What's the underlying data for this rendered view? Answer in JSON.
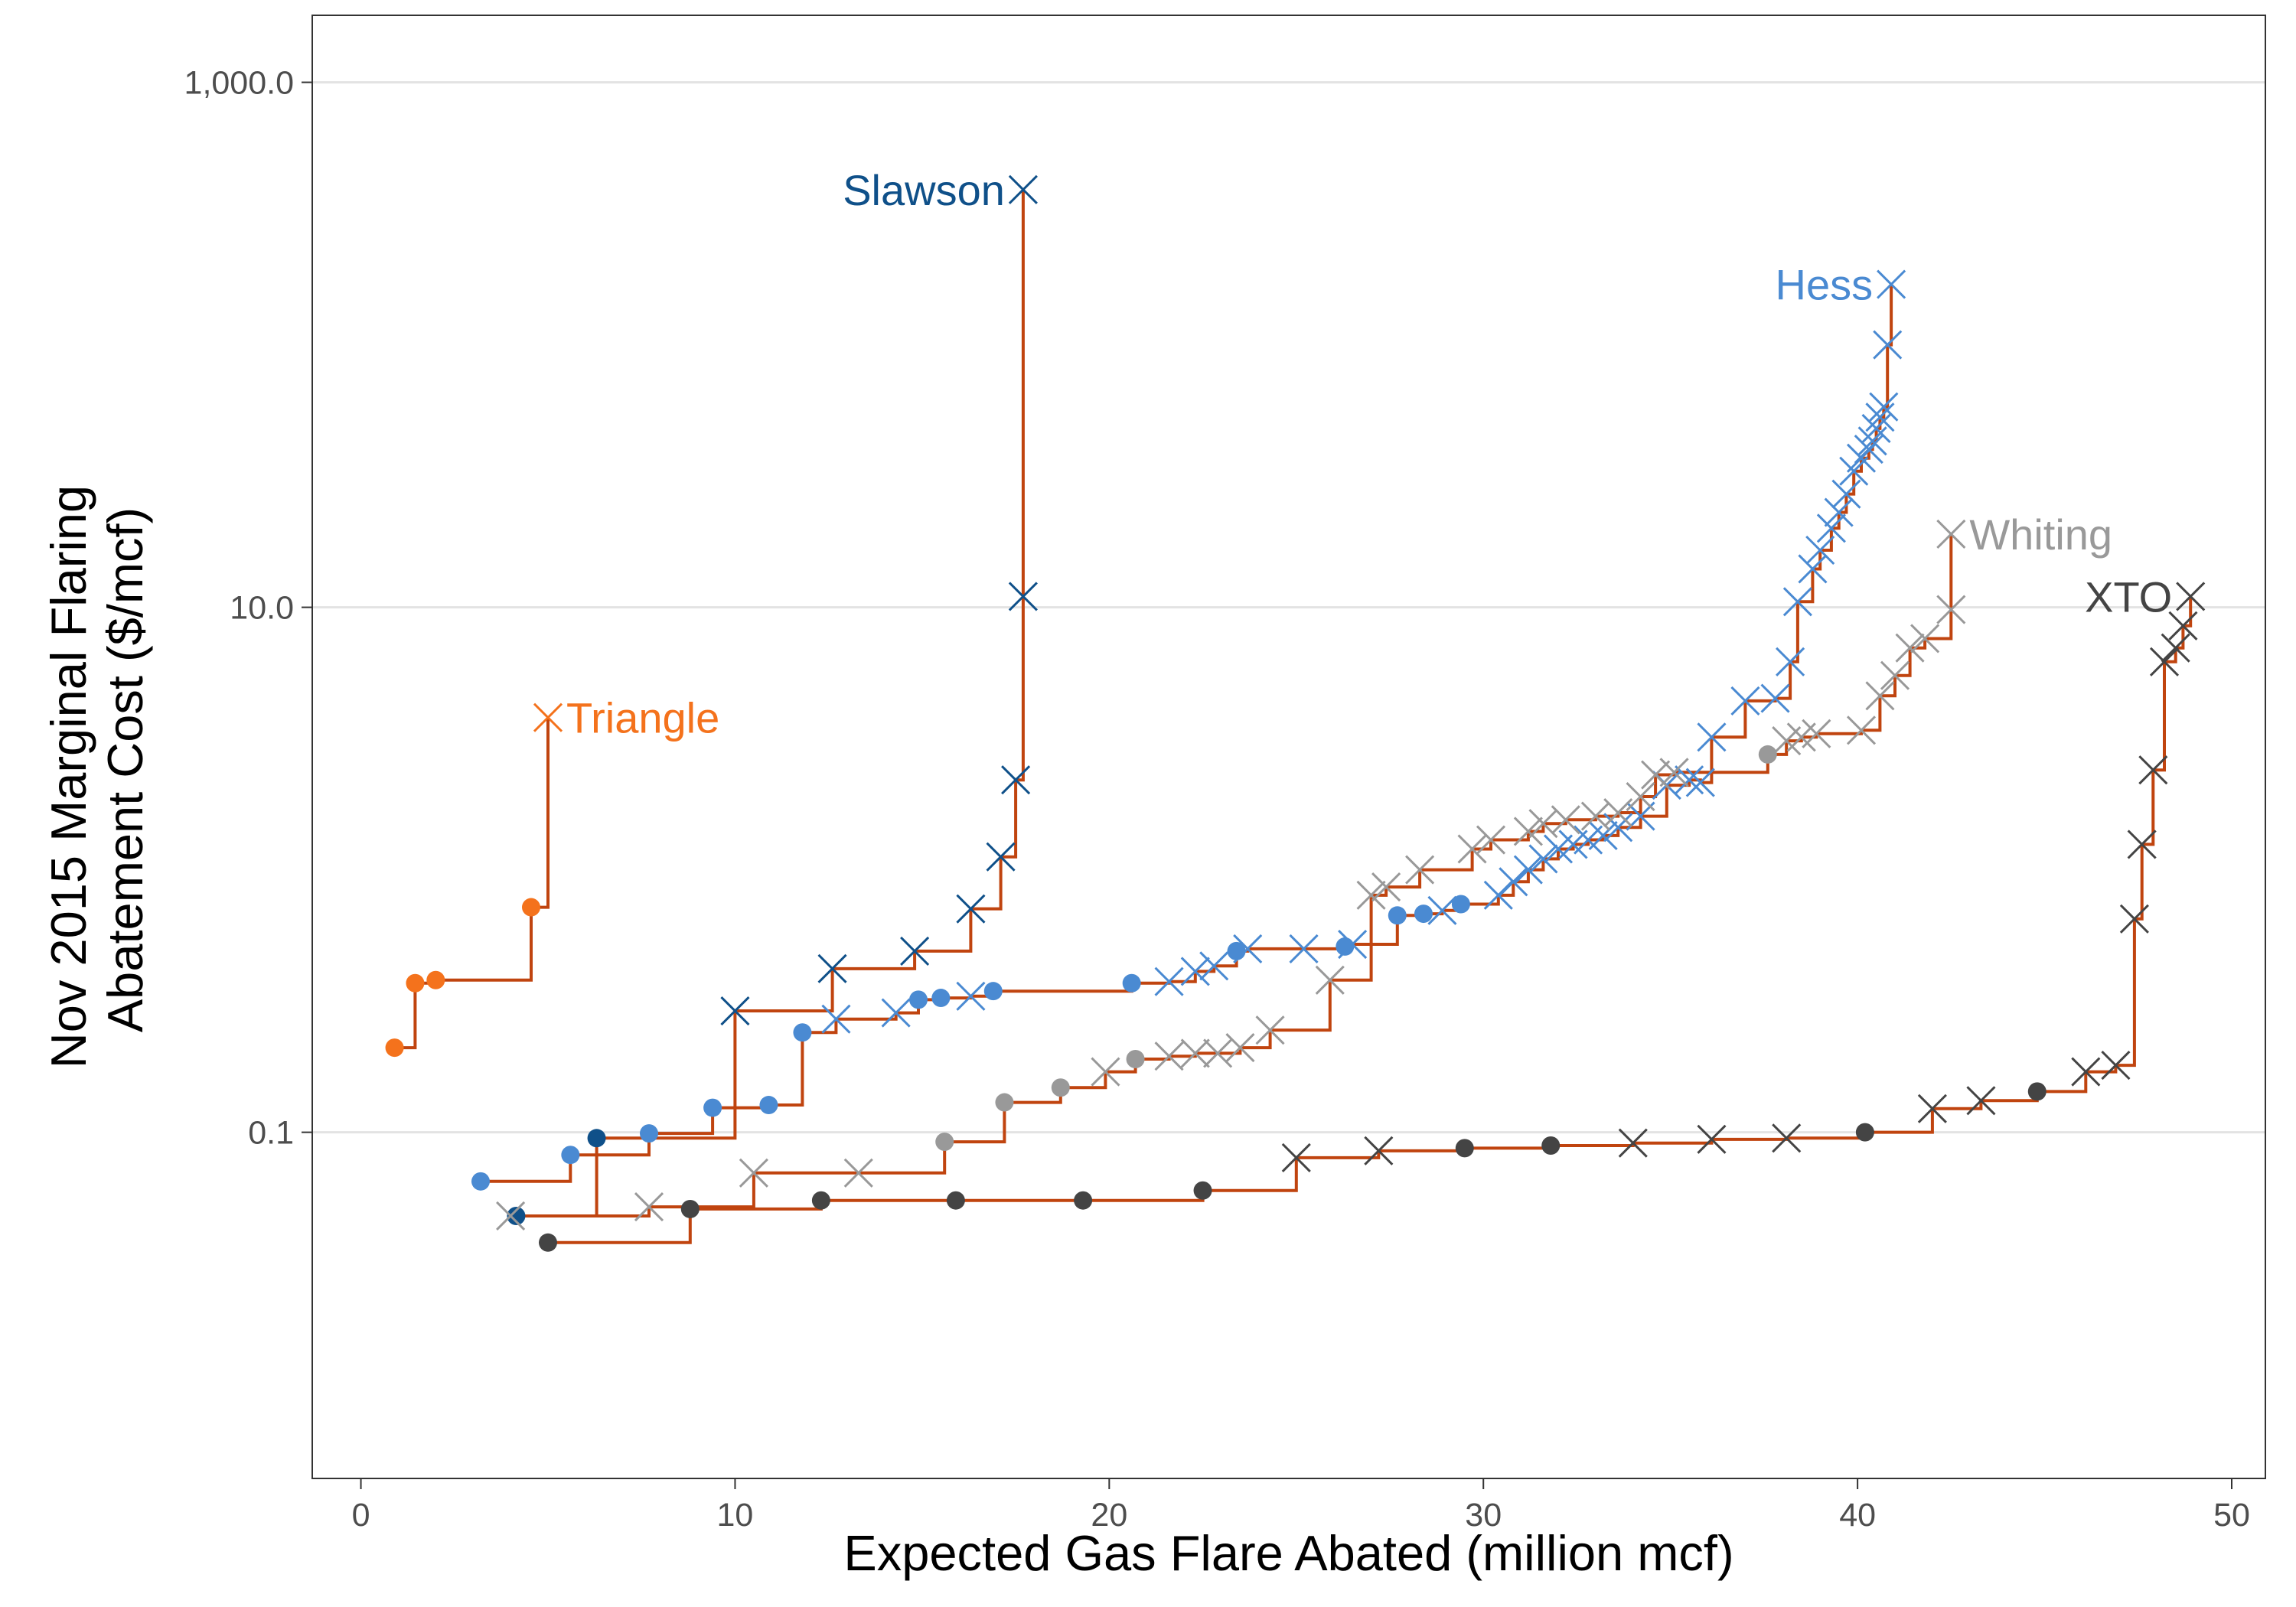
{
  "chart_data": {
    "type": "line",
    "title": "",
    "xlabel": "Expected Gas Flare Abated (million mcf)",
    "ylabel_lines": [
      "Nov 2015 Marginal Flaring",
      "Abatement Cost ($/mcf)"
    ],
    "x_range": [
      -1.3,
      50.9
    ],
    "y_range": [
      0.0048,
      1800
    ],
    "y_scale": "log",
    "x_ticks": [
      {
        "value": 0,
        "label": "0"
      },
      {
        "value": 10,
        "label": "10"
      },
      {
        "value": 20,
        "label": "20"
      },
      {
        "value": 30,
        "label": "30"
      },
      {
        "value": 40,
        "label": "40"
      },
      {
        "value": 50,
        "label": "50"
      }
    ],
    "y_ticks": [
      {
        "value": 0.1,
        "label": "0.1"
      },
      {
        "value": 10,
        "label": "10.0"
      },
      {
        "value": 1000,
        "label": "1,000.0"
      }
    ],
    "grid": {
      "horizontal": true,
      "vertical": false
    },
    "step_line_color": "#c0440f",
    "series": [
      {
        "name": "Triangle",
        "color": "#f4721c",
        "label_side": "right",
        "points": [
          {
            "x": 0.9,
            "y": 0.21,
            "m": "o"
          },
          {
            "x": 1.45,
            "y": 0.37,
            "m": "o"
          },
          {
            "x": 2.0,
            "y": 0.38,
            "m": "o"
          },
          {
            "x": 4.55,
            "y": 0.72,
            "m": "o"
          },
          {
            "x": 5.0,
            "y": 3.8,
            "m": "x"
          }
        ]
      },
      {
        "name": "Slawson",
        "color": "#0f5089",
        "label_side": "left",
        "points": [
          {
            "x": 4.15,
            "y": 0.048,
            "m": "o"
          },
          {
            "x": 6.3,
            "y": 0.095,
            "m": "o"
          },
          {
            "x": 10.0,
            "y": 0.29,
            "m": "x"
          },
          {
            "x": 12.6,
            "y": 0.42,
            "m": "x"
          },
          {
            "x": 14.8,
            "y": 0.49,
            "m": "x"
          },
          {
            "x": 16.3,
            "y": 0.71,
            "m": "x"
          },
          {
            "x": 17.1,
            "y": 1.12,
            "m": "x"
          },
          {
            "x": 17.5,
            "y": 2.2,
            "m": "x"
          },
          {
            "x": 17.7,
            "y": 11.0,
            "m": "x"
          },
          {
            "x": 17.7,
            "y": 390,
            "m": "x"
          }
        ]
      },
      {
        "name": "Hess",
        "color": "#4a8ad2",
        "label_side": "left",
        "points": [
          {
            "x": 3.2,
            "y": 0.065,
            "m": "o"
          },
          {
            "x": 5.6,
            "y": 0.082,
            "m": "o"
          },
          {
            "x": 7.7,
            "y": 0.099,
            "m": "o"
          },
          {
            "x": 9.4,
            "y": 0.124,
            "m": "o"
          },
          {
            "x": 10.9,
            "y": 0.127,
            "m": "o"
          },
          {
            "x": 11.8,
            "y": 0.24,
            "m": "o"
          },
          {
            "x": 12.7,
            "y": 0.27,
            "m": "x"
          },
          {
            "x": 14.3,
            "y": 0.285,
            "m": "x"
          },
          {
            "x": 14.9,
            "y": 0.32,
            "m": "o"
          },
          {
            "x": 15.5,
            "y": 0.325,
            "m": "o"
          },
          {
            "x": 16.3,
            "y": 0.33,
            "m": "x"
          },
          {
            "x": 16.9,
            "y": 0.345,
            "m": "o"
          },
          {
            "x": 20.6,
            "y": 0.37,
            "m": "o"
          },
          {
            "x": 21.6,
            "y": 0.375,
            "m": "x"
          },
          {
            "x": 22.3,
            "y": 0.41,
            "m": "x"
          },
          {
            "x": 22.8,
            "y": 0.43,
            "m": "x"
          },
          {
            "x": 23.4,
            "y": 0.49,
            "m": "o"
          },
          {
            "x": 23.7,
            "y": 0.5,
            "m": "x"
          },
          {
            "x": 25.2,
            "y": 0.5,
            "m": "x"
          },
          {
            "x": 26.3,
            "y": 0.51,
            "m": "o"
          },
          {
            "x": 26.5,
            "y": 0.52,
            "m": "x"
          },
          {
            "x": 27.7,
            "y": 0.67,
            "m": "o"
          },
          {
            "x": 28.4,
            "y": 0.68,
            "m": "o"
          },
          {
            "x": 28.9,
            "y": 0.7,
            "m": "x"
          },
          {
            "x": 29.4,
            "y": 0.74,
            "m": "o"
          },
          {
            "x": 30.4,
            "y": 0.8,
            "m": "x"
          },
          {
            "x": 30.8,
            "y": 0.9,
            "m": "x"
          },
          {
            "x": 31.2,
            "y": 1.0,
            "m": "x"
          },
          {
            "x": 31.6,
            "y": 1.1,
            "m": "x"
          },
          {
            "x": 32.0,
            "y": 1.2,
            "m": "x"
          },
          {
            "x": 32.4,
            "y": 1.25,
            "m": "x"
          },
          {
            "x": 32.8,
            "y": 1.3,
            "m": "x"
          },
          {
            "x": 33.2,
            "y": 1.35,
            "m": "x"
          },
          {
            "x": 33.6,
            "y": 1.45,
            "m": "x"
          },
          {
            "x": 34.2,
            "y": 1.6,
            "m": "x"
          },
          {
            "x": 34.9,
            "y": 2.1,
            "m": "x"
          },
          {
            "x": 35.5,
            "y": 2.2,
            "m": "x"
          },
          {
            "x": 35.8,
            "y": 2.15,
            "m": "x"
          },
          {
            "x": 36.1,
            "y": 3.2,
            "m": "x"
          },
          {
            "x": 37.0,
            "y": 4.4,
            "m": "x"
          },
          {
            "x": 37.8,
            "y": 4.5,
            "m": "x"
          },
          {
            "x": 38.2,
            "y": 6.2,
            "m": "x"
          },
          {
            "x": 38.4,
            "y": 10.5,
            "m": "x"
          },
          {
            "x": 38.8,
            "y": 14.0,
            "m": "x"
          },
          {
            "x": 39.0,
            "y": 16.5,
            "m": "x"
          },
          {
            "x": 39.3,
            "y": 20.0,
            "m": "x"
          },
          {
            "x": 39.5,
            "y": 23.0,
            "m": "x"
          },
          {
            "x": 39.7,
            "y": 27.0,
            "m": "x"
          },
          {
            "x": 39.9,
            "y": 33.0,
            "m": "x"
          },
          {
            "x": 40.1,
            "y": 37.0,
            "m": "x"
          },
          {
            "x": 40.3,
            "y": 40.0,
            "m": "x"
          },
          {
            "x": 40.4,
            "y": 43.0,
            "m": "x"
          },
          {
            "x": 40.5,
            "y": 48.0,
            "m": "x"
          },
          {
            "x": 40.6,
            "y": 53.0,
            "m": "x"
          },
          {
            "x": 40.7,
            "y": 58.0,
            "m": "x"
          },
          {
            "x": 40.8,
            "y": 100,
            "m": "x"
          },
          {
            "x": 40.9,
            "y": 170,
            "m": "x"
          }
        ]
      },
      {
        "name": "Whiting",
        "color": "#999999",
        "label_side": "right",
        "points": [
          {
            "x": 4.0,
            "y": 0.048,
            "m": "x"
          },
          {
            "x": 7.7,
            "y": 0.052,
            "m": "x"
          },
          {
            "x": 10.5,
            "y": 0.07,
            "m": "x"
          },
          {
            "x": 13.3,
            "y": 0.07,
            "m": "x"
          },
          {
            "x": 15.6,
            "y": 0.092,
            "m": "o"
          },
          {
            "x": 17.2,
            "y": 0.13,
            "m": "o"
          },
          {
            "x": 18.7,
            "y": 0.148,
            "m": "o"
          },
          {
            "x": 19.9,
            "y": 0.17,
            "m": "x"
          },
          {
            "x": 20.7,
            "y": 0.19,
            "m": "o"
          },
          {
            "x": 21.6,
            "y": 0.195,
            "m": "x"
          },
          {
            "x": 22.3,
            "y": 0.2,
            "m": "x"
          },
          {
            "x": 22.9,
            "y": 0.2,
            "m": "x"
          },
          {
            "x": 23.5,
            "y": 0.21,
            "m": "x"
          },
          {
            "x": 24.3,
            "y": 0.245,
            "m": "x"
          },
          {
            "x": 25.9,
            "y": 0.38,
            "m": "x"
          },
          {
            "x": 27.0,
            "y": 0.8,
            "m": "x"
          },
          {
            "x": 27.4,
            "y": 0.86,
            "m": "x"
          },
          {
            "x": 28.3,
            "y": 1.0,
            "m": "x"
          },
          {
            "x": 29.7,
            "y": 1.2,
            "m": "x"
          },
          {
            "x": 30.2,
            "y": 1.3,
            "m": "x"
          },
          {
            "x": 31.2,
            "y": 1.4,
            "m": "x"
          },
          {
            "x": 31.6,
            "y": 1.5,
            "m": "x"
          },
          {
            "x": 32.2,
            "y": 1.55,
            "m": "x"
          },
          {
            "x": 33.0,
            "y": 1.6,
            "m": "x"
          },
          {
            "x": 33.6,
            "y": 1.65,
            "m": "x"
          },
          {
            "x": 34.2,
            "y": 1.9,
            "m": "x"
          },
          {
            "x": 34.6,
            "y": 2.3,
            "m": "x"
          },
          {
            "x": 35.1,
            "y": 2.35,
            "m": "x"
          },
          {
            "x": 37.6,
            "y": 2.75,
            "m": "o"
          },
          {
            "x": 38.1,
            "y": 3.1,
            "m": "x"
          },
          {
            "x": 38.5,
            "y": 3.2,
            "m": "x"
          },
          {
            "x": 38.9,
            "y": 3.3,
            "m": "x"
          },
          {
            "x": 40.1,
            "y": 3.4,
            "m": "x"
          },
          {
            "x": 40.6,
            "y": 4.6,
            "m": "x"
          },
          {
            "x": 41.0,
            "y": 5.5,
            "m": "x"
          },
          {
            "x": 41.4,
            "y": 7.0,
            "m": "x"
          },
          {
            "x": 41.8,
            "y": 7.6,
            "m": "x"
          },
          {
            "x": 42.5,
            "y": 9.8,
            "m": "x"
          },
          {
            "x": 42.5,
            "y": 19.0,
            "m": "x"
          }
        ]
      },
      {
        "name": "XTO",
        "color": "#444444",
        "label_side": "left",
        "points": [
          {
            "x": 5.0,
            "y": 0.038,
            "m": "o"
          },
          {
            "x": 8.8,
            "y": 0.051,
            "m": "o"
          },
          {
            "x": 12.3,
            "y": 0.055,
            "m": "o"
          },
          {
            "x": 15.9,
            "y": 0.055,
            "m": "o"
          },
          {
            "x": 19.3,
            "y": 0.055,
            "m": "o"
          },
          {
            "x": 22.5,
            "y": 0.06,
            "m": "o"
          },
          {
            "x": 25.0,
            "y": 0.08,
            "m": "x"
          },
          {
            "x": 27.2,
            "y": 0.085,
            "m": "x"
          },
          {
            "x": 29.5,
            "y": 0.087,
            "m": "o"
          },
          {
            "x": 31.8,
            "y": 0.089,
            "m": "o"
          },
          {
            "x": 34.0,
            "y": 0.091,
            "m": "x"
          },
          {
            "x": 36.1,
            "y": 0.094,
            "m": "x"
          },
          {
            "x": 38.1,
            "y": 0.095,
            "m": "x"
          },
          {
            "x": 40.2,
            "y": 0.1,
            "m": "o"
          },
          {
            "x": 42.0,
            "y": 0.123,
            "m": "x"
          },
          {
            "x": 43.3,
            "y": 0.132,
            "m": "x"
          },
          {
            "x": 44.8,
            "y": 0.143,
            "m": "o"
          },
          {
            "x": 46.1,
            "y": 0.17,
            "m": "x"
          },
          {
            "x": 46.9,
            "y": 0.18,
            "m": "x"
          },
          {
            "x": 47.4,
            "y": 0.65,
            "m": "x"
          },
          {
            "x": 47.6,
            "y": 1.25,
            "m": "x"
          },
          {
            "x": 47.9,
            "y": 2.4,
            "m": "x"
          },
          {
            "x": 48.2,
            "y": 6.2,
            "m": "x"
          },
          {
            "x": 48.5,
            "y": 7.0,
            "m": "x"
          },
          {
            "x": 48.7,
            "y": 8.5,
            "m": "x"
          },
          {
            "x": 48.9,
            "y": 11.0,
            "m": "x"
          }
        ]
      }
    ]
  }
}
